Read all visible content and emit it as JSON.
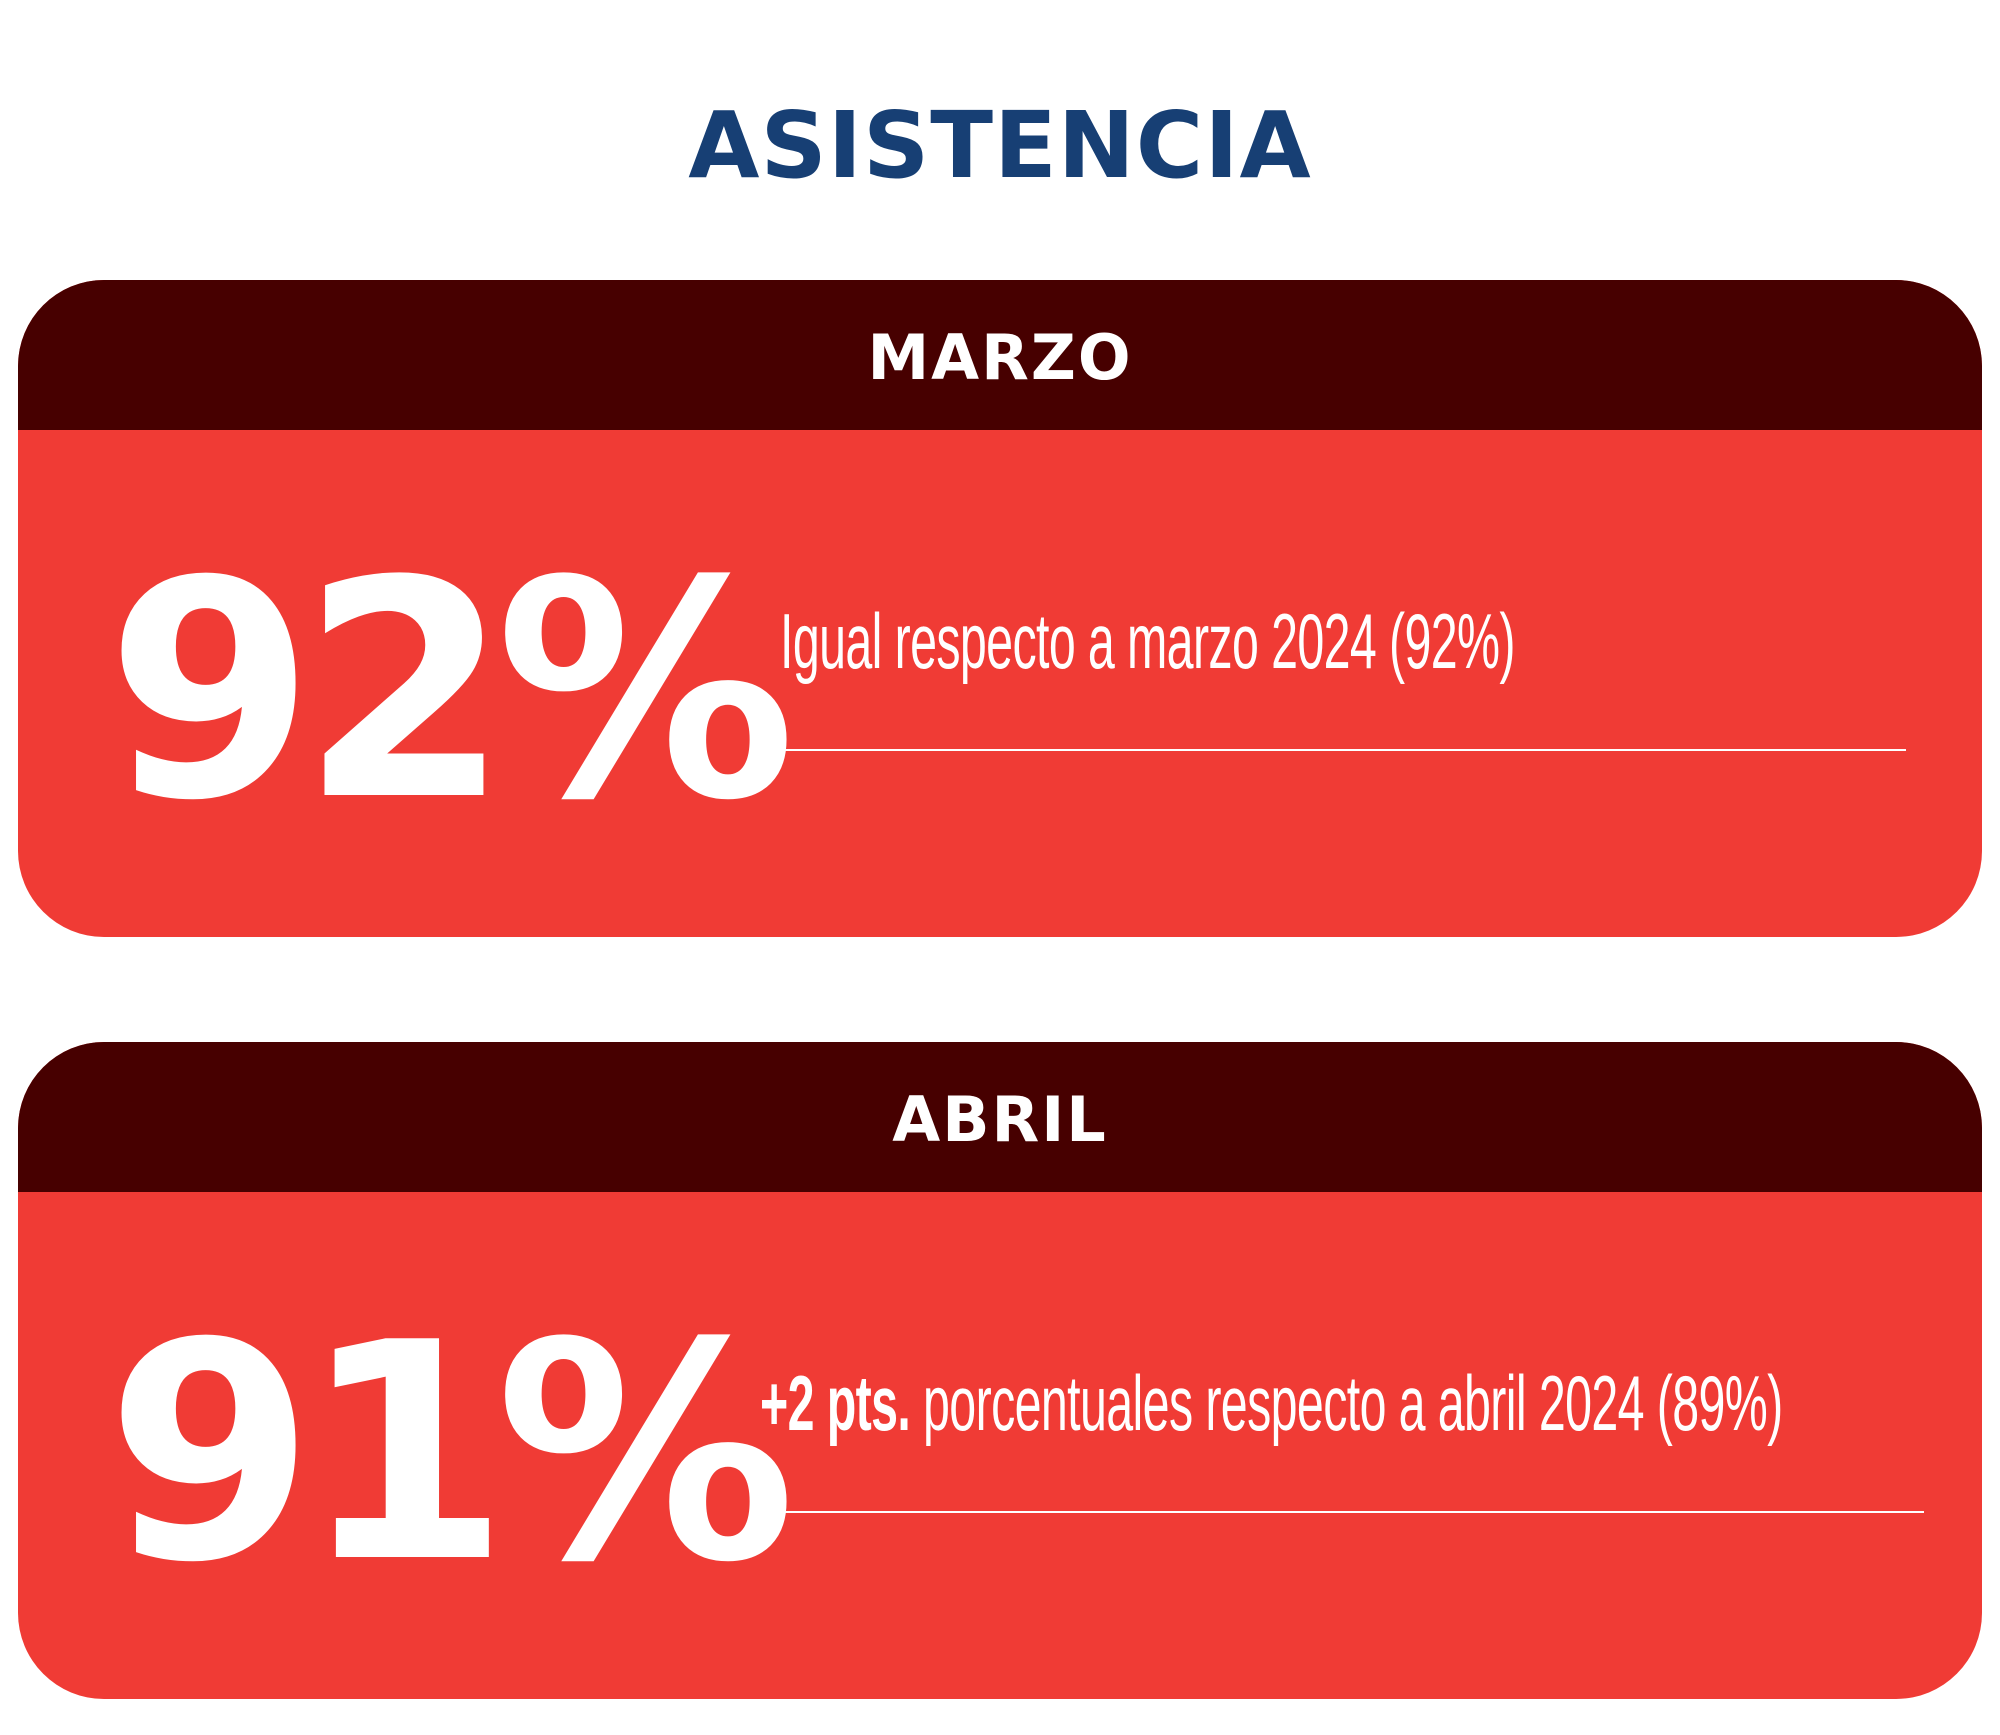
{
  "title": "ASISTENCIA",
  "cards": [
    {
      "month": "MARZO",
      "value": "92%",
      "comparison_strong": "",
      "comparison_text": "Igual respecto a marzo 2024 (92%)"
    },
    {
      "month": "ABRIL",
      "value": "91%",
      "comparison_strong": "+2 pts.",
      "comparison_text": " porcentuales respecto a abril 2024 (89%)"
    }
  ],
  "colors": {
    "title": "#173f74",
    "header_bg": "#470000",
    "card_bg": "#f03b35",
    "text": "#ffffff"
  }
}
